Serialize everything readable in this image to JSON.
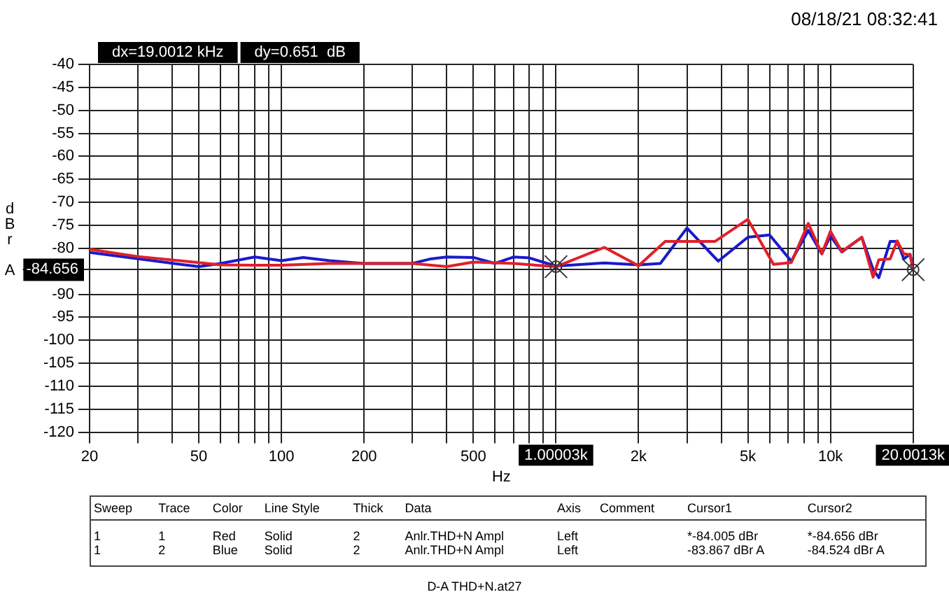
{
  "chart_data": {
    "type": "line",
    "xlabel": "Hz",
    "ylabel": "dBr A",
    "log": "x",
    "grid": true,
    "marker": "none",
    "line_style": "solid",
    "xlim": [
      20,
      20001.3
    ],
    "ylim": [
      -120,
      -40
    ],
    "xticks": [
      20,
      {
        "value": 30,
        "label": null
      },
      {
        "value": 40,
        "label": null
      },
      50,
      {
        "value": 60,
        "label": null
      },
      {
        "value": 70,
        "label": null
      },
      {
        "value": 80,
        "label": null
      },
      {
        "value": 90,
        "label": null
      },
      100,
      200,
      {
        "value": 300,
        "label": null
      },
      {
        "value": 400,
        "label": null
      },
      500,
      {
        "value": 600,
        "label": null
      },
      {
        "value": 700,
        "label": null
      },
      {
        "value": 800,
        "label": null
      },
      {
        "value": 900,
        "label": null
      },
      {
        "value": 1000.03,
        "label": "1.00003k"
      },
      {
        "value": 2000,
        "label": "2k"
      },
      {
        "value": 3000,
        "label": null
      },
      {
        "value": 4000,
        "label": null
      },
      {
        "value": 5000,
        "label": "5k"
      },
      {
        "value": 6000,
        "label": null
      },
      {
        "value": 7000,
        "label": null
      },
      {
        "value": 8000,
        "label": null
      },
      {
        "value": 9000,
        "label": null
      },
      {
        "value": 10000,
        "label": "10k"
      },
      {
        "value": 20001.3,
        "label": "20.0013k"
      }
    ],
    "yticks": [
      -40,
      -45,
      -50,
      -55,
      -60,
      -65,
      -70,
      -75,
      -80,
      {
        "value": -84.656,
        "label": "-84.656"
      },
      -90,
      -95,
      -100,
      -105,
      -110,
      -115,
      -120
    ],
    "series": [
      {
        "color": "#e0202a",
        "x": [
          20,
          30,
          50,
          60,
          80,
          100,
          150,
          200,
          300,
          400,
          500,
          700,
          1000.03,
          1500,
          2000,
          2500,
          3800,
          5000,
          6200,
          7200,
          8300,
          9300,
          10000,
          11000,
          13000,
          14300,
          15000,
          16500,
          17500,
          18500,
          19500,
          20001.3
        ],
        "values": [
          -80.2,
          -81.8,
          -83.1,
          -83.6,
          -83.7,
          -83.7,
          -83.3,
          -83.3,
          -83.3,
          -84,
          -83,
          -83.3,
          -84.005,
          -79.8,
          -83.8,
          -78.5,
          -78.5,
          -73.7,
          -83.5,
          -83.1,
          -74.6,
          -81.2,
          -76.3,
          -80.7,
          -77.6,
          -86.3,
          -82.5,
          -82.3,
          -78.4,
          -81.2,
          -81.4,
          -84.656
        ]
      },
      {
        "color": "#1a1acc",
        "x": [
          20,
          50,
          60,
          80,
          100,
          120,
          150,
          200,
          300,
          350,
          400,
          500,
          600,
          700,
          800,
          1000.03,
          1500,
          2000,
          2400,
          3000,
          3900,
          5000,
          6000,
          7200,
          8300,
          9300,
          10000,
          11000,
          13000,
          14300,
          15000,
          16500,
          17500,
          18500,
          19500,
          20001.3
        ],
        "values": [
          -80.9,
          -84,
          -83.3,
          -81.9,
          -82.7,
          -82,
          -82.7,
          -83.3,
          -83.3,
          -82.3,
          -81.9,
          -82,
          -83.3,
          -81.9,
          -82.1,
          -83.867,
          -83.2,
          -83.6,
          -83.3,
          -75.6,
          -82.8,
          -77.6,
          -77.1,
          -82.8,
          -76.1,
          -81.2,
          -77.3,
          -80.8,
          -77.6,
          -84.6,
          -86.4,
          -78.5,
          -78.5,
          -82.3,
          -81.3,
          -84.524
        ]
      }
    ],
    "annotations": [
      "08/18/21 08:32:41",
      "dx=19.0012 kHz",
      "dy=0.651  dB",
      "Sweep",
      "Trace",
      "Color",
      "Line Style",
      "Thick",
      "Data",
      "Axis",
      "Comment",
      "Cursor1",
      "Cursor2",
      "1",
      "1",
      "Red",
      "Solid",
      "2",
      "Anlr.THD+N Ampl",
      "Left",
      "*-84.005  dBr",
      "*-84.656  dBr",
      "1",
      "2",
      "Blue",
      "Solid",
      "2",
      "Anlr.THD+N Ampl",
      "Left",
      "-83.867  dBr A",
      "-84.524  dBr A",
      "D-A THD+N.at27"
    ]
  }
}
